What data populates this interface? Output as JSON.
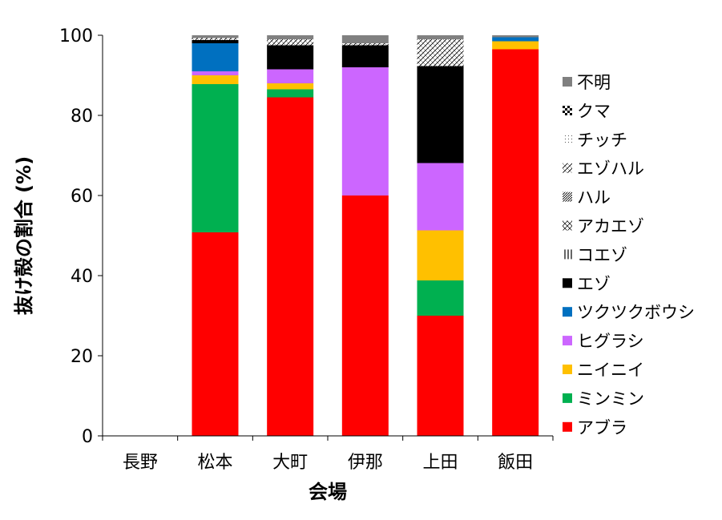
{
  "chart_data": {
    "type": "bar",
    "stacked": true,
    "title": "",
    "xlabel": "会場",
    "ylabel": "抜け殻の割合 (%)",
    "ylim": [
      0,
      100
    ],
    "yticks": [
      0,
      20,
      40,
      60,
      80,
      100
    ],
    "grid": false,
    "legend_position": "right",
    "categories": [
      "長野",
      "松本",
      "大町",
      "伊那",
      "上田",
      "飯田"
    ],
    "series": [
      {
        "name": "アブラ",
        "color": "#ff0000",
        "pattern": "solid",
        "values": [
          0,
          50.8,
          84.5,
          60.0,
          30.0,
          96.5
        ]
      },
      {
        "name": "ミンミン",
        "color": "#00b050",
        "pattern": "solid",
        "values": [
          0,
          37.0,
          2.0,
          0,
          8.8,
          0
        ]
      },
      {
        "name": "ニイニイ",
        "color": "#ffc000",
        "pattern": "solid",
        "values": [
          0,
          2.2,
          1.5,
          0,
          12.5,
          2.0
        ]
      },
      {
        "name": "ヒグラシ",
        "color": "#cc66ff",
        "pattern": "solid",
        "values": [
          0,
          1.0,
          3.5,
          32.0,
          16.8,
          0
        ]
      },
      {
        "name": "ツクツクボウシ",
        "color": "#0070c0",
        "pattern": "solid",
        "values": [
          0,
          7.0,
          0,
          0,
          0,
          1.0
        ]
      },
      {
        "name": "エゾ",
        "color": "#000000",
        "pattern": "solid",
        "values": [
          0,
          0.8,
          6.0,
          5.5,
          24.2,
          0
        ]
      },
      {
        "name": "コエゾ",
        "color": "#000000",
        "pattern": "vertical",
        "values": [
          0,
          0,
          0,
          0,
          0,
          0
        ]
      },
      {
        "name": "アカエゾ",
        "color": "#000000",
        "pattern": "diamond",
        "values": [
          0,
          0,
          0,
          0,
          0,
          0
        ]
      },
      {
        "name": "ハル",
        "color": "#000000",
        "pattern": "diagonal-dense",
        "values": [
          0,
          0,
          0,
          0,
          0,
          0
        ]
      },
      {
        "name": "エゾハル",
        "color": "#000000",
        "pattern": "diagonal",
        "values": [
          0,
          0.5,
          1.5,
          0.5,
          6.7,
          0
        ]
      },
      {
        "name": "チッチ",
        "color": "#000000",
        "pattern": "dots",
        "values": [
          0,
          0,
          0,
          0,
          0,
          0
        ]
      },
      {
        "name": "クマ",
        "color": "#000000",
        "pattern": "checker",
        "values": [
          0,
          0,
          0,
          0,
          0,
          0
        ]
      },
      {
        "name": "不明",
        "color": "#808080",
        "pattern": "solid",
        "values": [
          0,
          0.7,
          1.0,
          2.0,
          1.0,
          0.5
        ]
      }
    ]
  }
}
